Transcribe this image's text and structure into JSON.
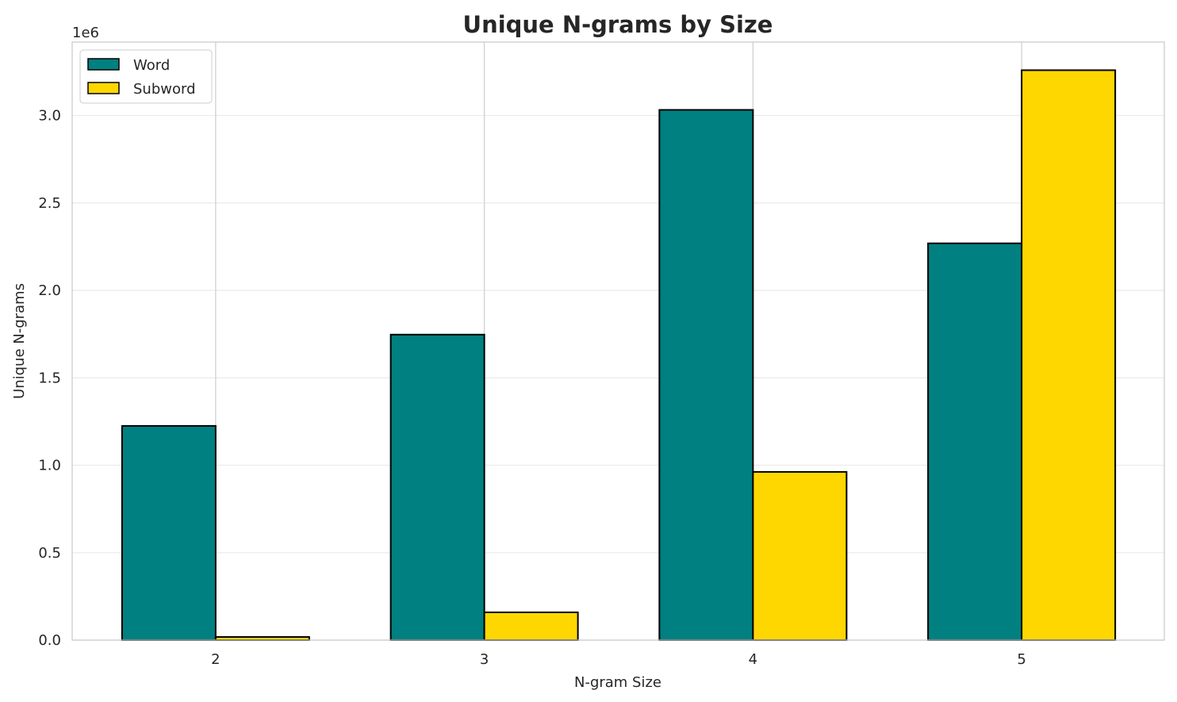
{
  "chart_data": {
    "type": "bar",
    "title": "Unique N-grams by Size",
    "xlabel": "N-gram Size",
    "ylabel": "Unique N-grams",
    "y_offset_label": "1e6",
    "categories": [
      "2",
      "3",
      "4",
      "5"
    ],
    "series": [
      {
        "name": "Word",
        "color": "#008080",
        "values": [
          1225000,
          1747000,
          3032000,
          2269000
        ]
      },
      {
        "name": "Subword",
        "color": "#FFD700",
        "values": [
          18000,
          159000,
          962000,
          3259000
        ]
      }
    ],
    "ylim": [
      0,
      3420000
    ],
    "yticks": [
      0,
      500000,
      1000000,
      1500000,
      2000000,
      2500000,
      3000000
    ],
    "ytick_labels": [
      "0.0",
      "0.5",
      "1.0",
      "1.5",
      "2.0",
      "2.5",
      "3.0"
    ],
    "grid": true,
    "legend_position": "top-left"
  }
}
